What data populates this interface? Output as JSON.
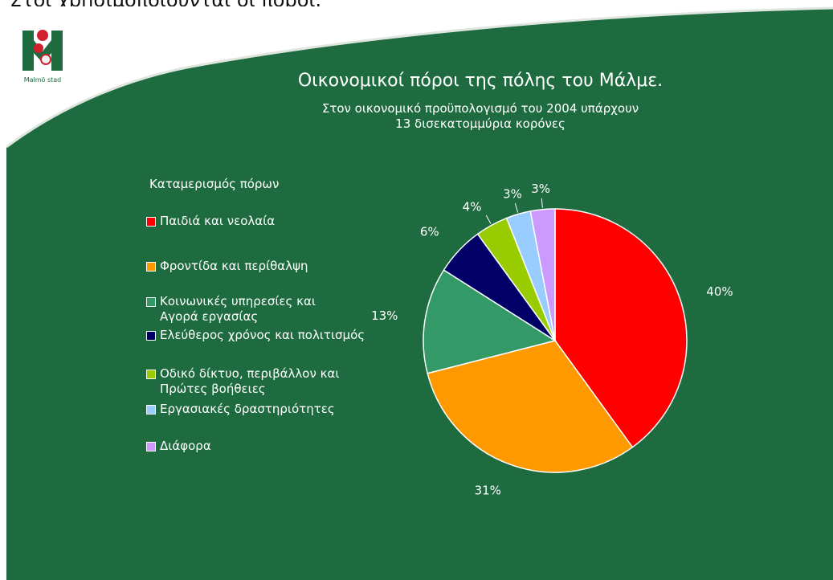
{
  "page": {
    "caption": "Στοι χρησιμοποιούνται οι πόροι."
  },
  "logo": {
    "text": "Malmö stad"
  },
  "chart_data": {
    "type": "pie",
    "title": "Οικονομικοί πόροι της πόλης του Μάλμε.",
    "subtitle_lines": [
      "Στον οικονομικό προϋπολογισμό του 2004 υπάρχουν",
      "13 δισεκατομμύρια κορόνες"
    ],
    "legend_title": "Καταμερισμός πόρων",
    "legend_placement": "left",
    "slices": [
      {
        "label_lines": [
          "Παιδιά και νεολαία"
        ],
        "value": 40,
        "pct_label": "40%",
        "color": "#ff0000"
      },
      {
        "label_lines": [
          "Φροντίδα και περίθαλψη"
        ],
        "value": 31,
        "pct_label": "31%",
        "color": "#ff9900"
      },
      {
        "label_lines": [
          "Κοινωνικές υπηρεσίες και",
          "Αγορά εργασίας"
        ],
        "value": 13,
        "pct_label": "13%",
        "color": "#339966"
      },
      {
        "label_lines": [
          "Ελεύθερος χρόνος και πολιτισμός"
        ],
        "value": 6,
        "pct_label": "6%",
        "color": "#000066"
      },
      {
        "label_lines": [
          "Οδικό δίκτυο, περιβάλλον και",
          "Πρώτες βοήθειες"
        ],
        "value": 4,
        "pct_label": "4%",
        "color": "#99cc00"
      },
      {
        "label_lines": [
          "Εργασιακές δραστηριότητες"
        ],
        "value": 3,
        "pct_label": "3%",
        "color": "#99ccff"
      },
      {
        "label_lines": [
          "Διάφορα"
        ],
        "value": 3,
        "pct_label": "3%",
        "color": "#cc99ff"
      }
    ]
  }
}
